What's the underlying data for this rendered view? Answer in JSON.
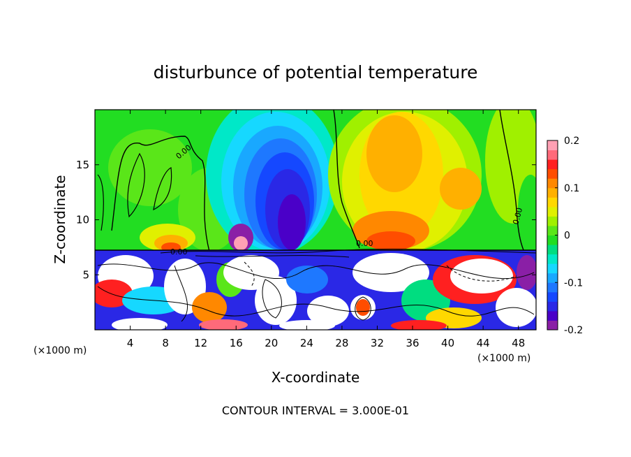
{
  "chart_data": {
    "type": "heatmap",
    "title": "disturbunce of potential temperature",
    "xlabel": "X-coordinate",
    "ylabel": "Z-coordinate",
    "x_unit": "(×1000 m)",
    "footer": "CONTOUR INTERVAL = 3.000E-01",
    "xlim": [
      0,
      50
    ],
    "ylim": [
      0,
      20
    ],
    "x_ticks": [
      4,
      8,
      12,
      16,
      20,
      24,
      28,
      32,
      36,
      40,
      44,
      48
    ],
    "y_ticks": [
      5,
      10,
      15
    ],
    "x_tick_labels": [
      "4",
      "8",
      "12",
      "16",
      "20",
      "24",
      "28",
      "32",
      "36",
      "40",
      "44",
      "48"
    ],
    "y_tick_labels": [
      "5",
      "10",
      "15"
    ],
    "colorbar": {
      "min": -0.2,
      "max": 0.2,
      "tick_values": [
        -0.2,
        -0.1,
        0,
        0.1,
        0.2
      ],
      "tick_labels": [
        "-0.2",
        "-0.1",
        "0",
        "0.1",
        "0.2"
      ],
      "colors": [
        "#8a1fa6",
        "#4a00c8",
        "#2a28e6",
        "#1548ff",
        "#1e78ff",
        "#19a8ff",
        "#16d8ff",
        "#00e8c8",
        "#00dd80",
        "#22dd22",
        "#5ae619",
        "#a0f000",
        "#e0f000",
        "#ffd800",
        "#ffb000",
        "#ff8800",
        "#ff4d00",
        "#ff2020",
        "#ff6a7a",
        "#ffa0b4"
      ]
    },
    "contour_labels": [
      "0.00",
      "0.00",
      "0.00",
      "0.00"
    ]
  }
}
